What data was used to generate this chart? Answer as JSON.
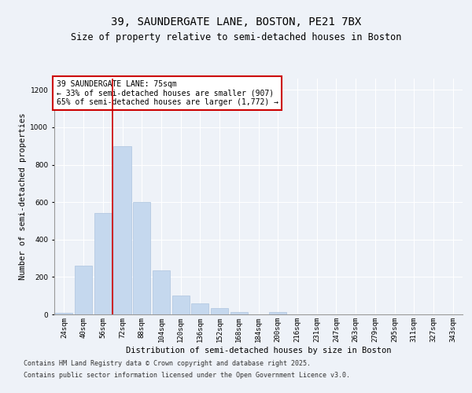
{
  "title_line1": "39, SAUNDERGATE LANE, BOSTON, PE21 7BX",
  "title_line2": "Size of property relative to semi-detached houses in Boston",
  "xlabel": "Distribution of semi-detached houses by size in Boston",
  "ylabel": "Number of semi-detached properties",
  "categories": [
    "24sqm",
    "40sqm",
    "56sqm",
    "72sqm",
    "88sqm",
    "104sqm",
    "120sqm",
    "136sqm",
    "152sqm",
    "168sqm",
    "184sqm",
    "200sqm",
    "216sqm",
    "231sqm",
    "247sqm",
    "263sqm",
    "279sqm",
    "295sqm",
    "311sqm",
    "327sqm",
    "343sqm"
  ],
  "values": [
    10,
    260,
    540,
    900,
    600,
    235,
    100,
    57,
    35,
    13,
    0,
    13,
    0,
    0,
    0,
    0,
    0,
    0,
    0,
    0,
    0
  ],
  "bar_color": "#c5d8ee",
  "bar_edgecolor": "#adc4de",
  "annotation_text": "39 SAUNDERGATE LANE: 75sqm\n← 33% of semi-detached houses are smaller (907)\n65% of semi-detached houses are larger (1,772) →",
  "vline_color": "#cc0000",
  "vline_x": 2.5,
  "ylim": [
    0,
    1260
  ],
  "yticks": [
    0,
    200,
    400,
    600,
    800,
    1000,
    1200
  ],
  "footnote_line1": "Contains HM Land Registry data © Crown copyright and database right 2025.",
  "footnote_line2": "Contains public sector information licensed under the Open Government Licence v3.0.",
  "background_color": "#eef2f8",
  "plot_background": "#eef2f8",
  "grid_color": "#ffffff",
  "title_fontsize": 10,
  "subtitle_fontsize": 8.5,
  "axis_label_fontsize": 7.5,
  "tick_fontsize": 6.5,
  "annotation_fontsize": 7,
  "footnote_fontsize": 6
}
